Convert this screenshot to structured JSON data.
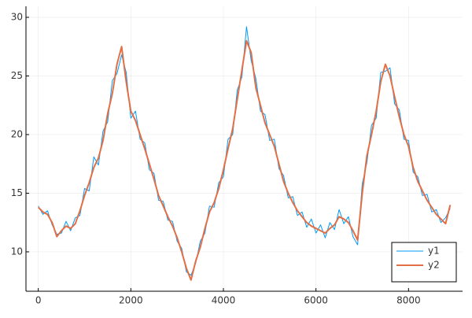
{
  "chart_data": {
    "type": "line",
    "x": [
      0,
      100,
      200,
      300,
      400,
      500,
      600,
      700,
      800,
      900,
      1000,
      1100,
      1200,
      1300,
      1400,
      1500,
      1600,
      1700,
      1800,
      1900,
      2000,
      2100,
      2200,
      2300,
      2400,
      2500,
      2600,
      2700,
      2800,
      2900,
      3000,
      3100,
      3200,
      3300,
      3400,
      3500,
      3600,
      3700,
      3800,
      3900,
      4000,
      4100,
      4200,
      4300,
      4400,
      4500,
      4600,
      4700,
      4800,
      4900,
      5000,
      5100,
      5200,
      5300,
      5400,
      5500,
      5600,
      5700,
      5800,
      5900,
      6000,
      6100,
      6200,
      6300,
      6400,
      6500,
      6600,
      6700,
      6800,
      6900,
      7000,
      7100,
      7200,
      7300,
      7400,
      7500,
      7600,
      7700,
      7800,
      7900,
      8000,
      8100,
      8200,
      8300,
      8400,
      8500,
      8600,
      8700,
      8800,
      8900
    ],
    "series": [
      {
        "name": "y1",
        "color": "#009af9",
        "width": 1,
        "values": [
          13.9,
          13.2,
          13.5,
          12.3,
          11.5,
          11.6,
          12.6,
          11.8,
          12.9,
          13.1,
          15.4,
          15.2,
          18.1,
          17.4,
          20.3,
          21.1,
          24.6,
          25.2,
          26.8,
          25.3,
          21.4,
          22.0,
          19.6,
          19.3,
          17.0,
          16.7,
          14.4,
          14.3,
          12.7,
          12.6,
          10.9,
          10.3,
          8.3,
          8.0,
          9.0,
          10.9,
          11.6,
          13.9,
          13.8,
          15.9,
          16.4,
          19.6,
          20.0,
          23.8,
          24.9,
          29.2,
          26.3,
          24.8,
          22.0,
          21.7,
          19.5,
          19.6,
          17.1,
          16.5,
          14.6,
          14.7,
          13.1,
          13.4,
          12.1,
          12.8,
          11.6,
          12.3,
          11.2,
          12.5,
          11.9,
          13.6,
          12.4,
          13.0,
          11.3,
          10.6,
          15.8,
          17.6,
          20.8,
          21.4,
          25.3,
          25.4,
          25.7,
          22.6,
          22.1,
          19.6,
          19.5,
          16.8,
          16.4,
          14.8,
          14.9,
          13.4,
          13.6,
          12.5,
          12.9,
          13.7
        ]
      },
      {
        "name": "y2",
        "color": "#e26f46",
        "width": 2,
        "values": [
          13.8,
          13.4,
          13.2,
          12.5,
          11.3,
          11.8,
          12.2,
          12.0,
          12.4,
          13.5,
          14.8,
          15.9,
          17.2,
          18.0,
          19.5,
          21.8,
          23.5,
          26.0,
          27.5,
          24.5,
          22.0,
          21.2,
          20.0,
          18.8,
          17.5,
          16.2,
          14.8,
          13.9,
          13.0,
          12.2,
          11.2,
          10.0,
          8.6,
          7.6,
          9.2,
          10.4,
          12.0,
          13.4,
          14.2,
          15.4,
          17.0,
          18.8,
          20.5,
          23.0,
          25.5,
          28.0,
          27.0,
          24.0,
          22.5,
          21.0,
          20.0,
          19.0,
          17.5,
          16.0,
          15.0,
          14.2,
          13.5,
          13.0,
          12.5,
          12.2,
          12.0,
          11.8,
          11.6,
          12.0,
          12.3,
          13.0,
          12.8,
          12.5,
          11.8,
          11.0,
          15.0,
          18.2,
          20.0,
          22.0,
          24.5,
          26.0,
          25.0,
          23.2,
          21.5,
          20.0,
          19.0,
          17.2,
          16.0,
          15.2,
          14.4,
          13.8,
          13.2,
          12.8,
          12.4,
          14.0
        ]
      }
    ],
    "xlim": [
      -266,
      9167
    ],
    "xticks": [
      0,
      2000,
      4000,
      6000,
      8000
    ],
    "ylim": [
      6.64,
      30.94
    ],
    "yticks": [
      10,
      15,
      20,
      25,
      30
    ],
    "grid": true,
    "legend": "bottom-right"
  }
}
